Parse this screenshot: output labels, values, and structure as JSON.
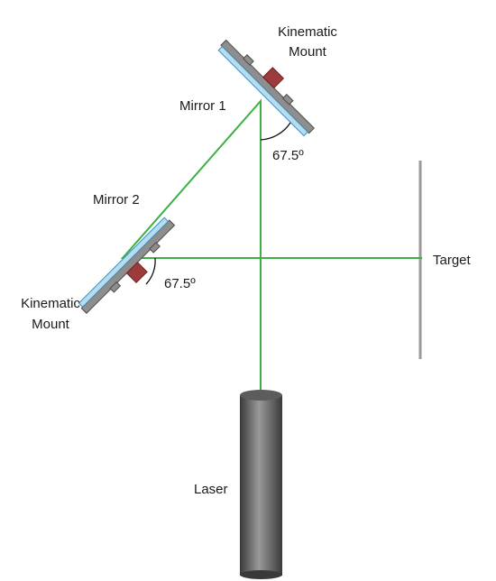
{
  "labels": {
    "kinematic_mount_top_line1": "Kinematic",
    "kinematic_mount_top_line2": "Mount",
    "mirror1": "Mirror 1",
    "angle_top": "67.5º",
    "mirror2": "Mirror 2",
    "angle_bottom": "67.5º",
    "kinematic_mount_bottom_line1": "Kinematic",
    "kinematic_mount_bottom_line2": "Mount",
    "target": "Target",
    "laser": "Laser"
  },
  "colors": {
    "beam": "#3cb043",
    "mirror_glass": "#b4ddf1",
    "mirror_glass_edge": "#3a8ec0",
    "mount_plate": "#8e8e8e",
    "mount_plate_edge": "#4a4a4a",
    "knob": "#9b3b3b",
    "target": "#9a9a9a"
  }
}
